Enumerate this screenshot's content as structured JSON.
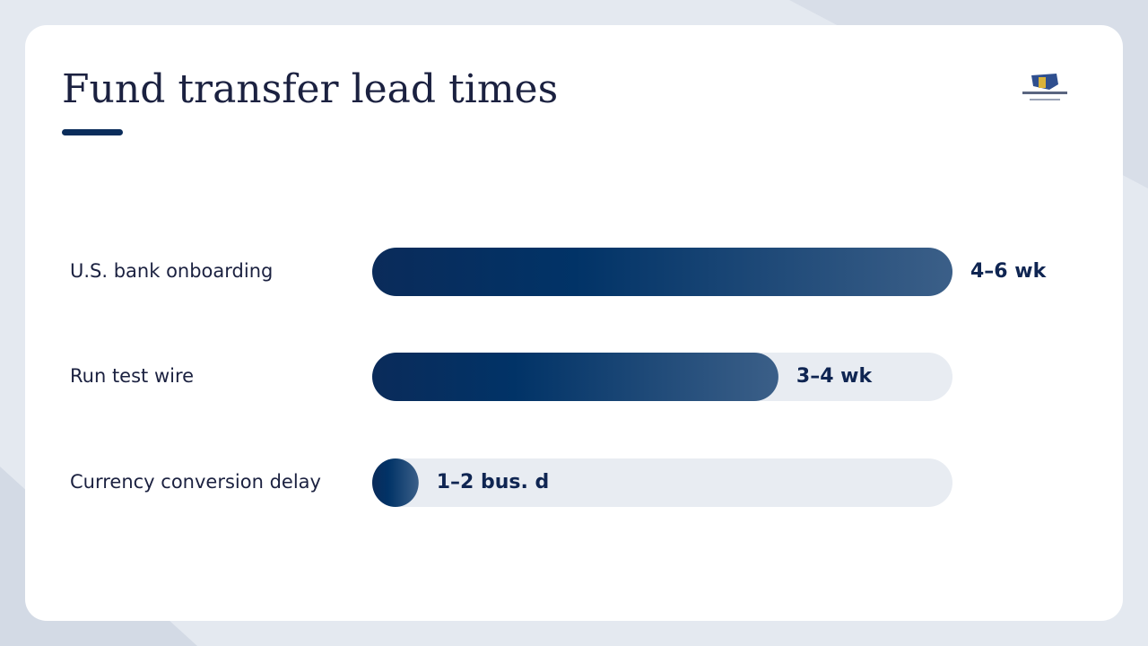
{
  "chart_data": {
    "type": "bar",
    "orientation": "horizontal",
    "title": "Fund transfer lead times",
    "categories": [
      "U.S. bank onboarding",
      "Run test wire",
      "Currency conversion delay"
    ],
    "values": [
      5,
      3.5,
      0.4
    ],
    "value_labels": [
      "4–6 wk",
      "3–4 wk",
      "1–2 bus. d"
    ],
    "xlim": [
      0,
      5
    ],
    "color": "#0a2d5e"
  }
}
